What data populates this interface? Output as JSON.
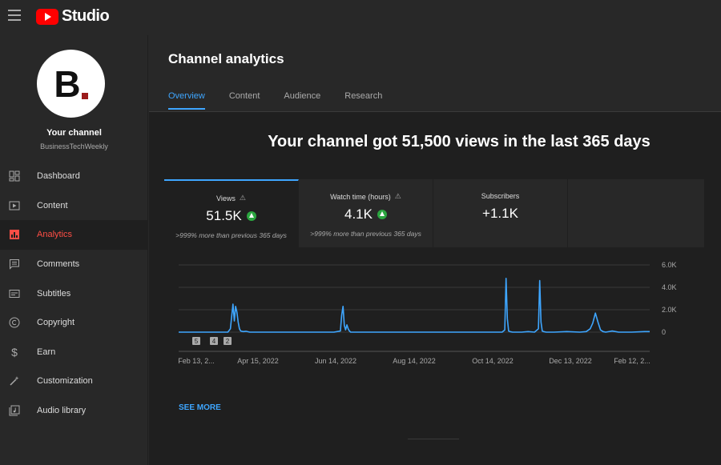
{
  "app": {
    "logo_text": "Studio"
  },
  "sidebar": {
    "your_channel": "Your channel",
    "channel_name": "BusinessTechWeekly",
    "avatar_letter": "B",
    "items": [
      {
        "label": "Dashboard",
        "icon": "dashboard-icon"
      },
      {
        "label": "Content",
        "icon": "content-icon"
      },
      {
        "label": "Analytics",
        "icon": "analytics-icon",
        "active": true
      },
      {
        "label": "Comments",
        "icon": "comments-icon"
      },
      {
        "label": "Subtitles",
        "icon": "subtitles-icon"
      },
      {
        "label": "Copyright",
        "icon": "copyright-icon"
      },
      {
        "label": "Earn",
        "icon": "dollar-icon"
      },
      {
        "label": "Customization",
        "icon": "magic-wand-icon"
      },
      {
        "label": "Audio library",
        "icon": "audio-library-icon"
      }
    ]
  },
  "main": {
    "title": "Channel analytics",
    "tabs": [
      {
        "label": "Overview",
        "active": true
      },
      {
        "label": "Content"
      },
      {
        "label": "Audience"
      },
      {
        "label": "Research"
      }
    ],
    "headline": "Your channel got 51,500 views in the last 365 days",
    "metrics": [
      {
        "title": "Views",
        "value": "51.5K",
        "sub": ">999% more than previous 365 days",
        "active": true
      },
      {
        "title": "Watch time (hours)",
        "value": "4.1K",
        "sub": ">999% more than previous 365 days"
      },
      {
        "title": "Subscribers",
        "value": "+1.1K",
        "sub": ""
      }
    ],
    "see_more": "SEE MORE"
  },
  "colors": {
    "accent": "#3ea6ff",
    "active_nav": "#ff4e45",
    "line": "#3ea6ff",
    "up": "#2ba640"
  },
  "chart_data": {
    "type": "line",
    "x_tick_labels": [
      "Feb 13, 2...",
      "Apr 15, 2022",
      "Jun 14, 2022",
      "Aug 14, 2022",
      "Oct 14, 2022",
      "Dec 13, 2022",
      "Feb 12, 2..."
    ],
    "y_tick_labels": [
      "6.0K",
      "4.0K",
      "2.0K",
      "0"
    ],
    "ylim": [
      0,
      6000
    ],
    "markers": [
      "5",
      "4",
      "2"
    ],
    "series": [
      {
        "x_index": [
          0,
          20,
          38,
          40,
          42,
          43,
          44,
          45,
          46,
          47,
          48,
          50,
          52,
          55,
          60,
          70,
          80,
          90,
          100,
          110,
          120,
          125,
          126,
          127,
          128,
          129,
          130,
          131,
          132,
          133,
          135,
          140,
          150,
          160,
          170,
          180,
          190,
          200,
          210,
          220,
          230,
          240,
          250,
          252,
          253,
          254,
          255,
          256,
          258,
          260,
          265,
          270,
          275,
          278,
          279,
          280,
          281,
          282,
          284,
          290,
          300,
          310,
          315,
          318,
          320,
          322,
          324,
          326,
          328,
          330,
          335,
          340,
          345,
          350,
          360,
          364
        ],
        "values": [
          0,
          0,
          0,
          300,
          2500,
          1000,
          2300,
          1800,
          900,
          300,
          100,
          50,
          80,
          0,
          0,
          0,
          0,
          0,
          0,
          0,
          0,
          100,
          1500,
          2300,
          600,
          200,
          650,
          300,
          100,
          0,
          0,
          0,
          0,
          0,
          0,
          0,
          0,
          0,
          0,
          0,
          0,
          0,
          0,
          200,
          4800,
          1200,
          100,
          50,
          0,
          0,
          0,
          50,
          0,
          300,
          4600,
          900,
          100,
          50,
          0,
          0,
          50,
          0,
          50,
          300,
          800,
          1700,
          900,
          200,
          50,
          0,
          100,
          0,
          0,
          0,
          50,
          50
        ]
      }
    ]
  }
}
